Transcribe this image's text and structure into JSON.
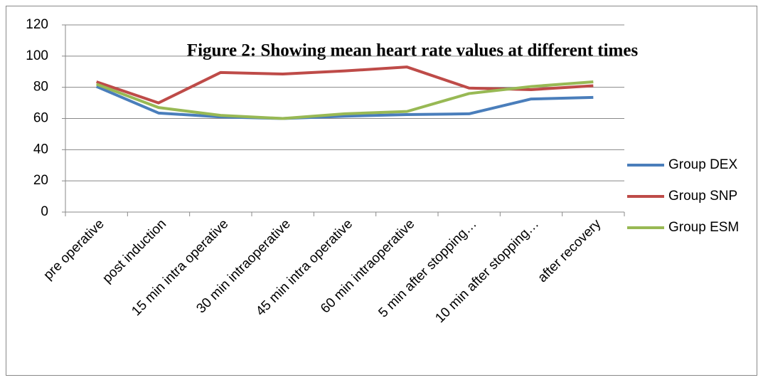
{
  "chart_data": {
    "type": "line",
    "title": "Figure 2: Showing mean heart rate values at different times",
    "categories": [
      "pre operative",
      "post induction",
      "15 min intra operative",
      "30 min intraoperative",
      "45 min intra operative",
      "60 min intraoperative",
      "5 min after stopping…",
      "10 min after stopping…",
      "after recovery"
    ],
    "series": [
      {
        "name": "Group DEX",
        "color": "#4a7ebb",
        "values": [
          80.5,
          63.5,
          61,
          60,
          61.5,
          62.5,
          63,
          72.5,
          73.5
        ]
      },
      {
        "name": "Group SNP",
        "color": "#be4b48",
        "values": [
          83.5,
          70,
          89.5,
          88.5,
          90.5,
          93,
          79.5,
          78.5,
          81
        ]
      },
      {
        "name": "Group ESM",
        "color": "#98b954",
        "values": [
          82,
          67,
          62,
          60,
          63,
          64.5,
          76,
          80.5,
          83.5
        ]
      }
    ],
    "ylim": [
      0,
      120
    ],
    "yticks": [
      0,
      20,
      40,
      60,
      80,
      100,
      120
    ],
    "grid": true,
    "legend": "right"
  }
}
